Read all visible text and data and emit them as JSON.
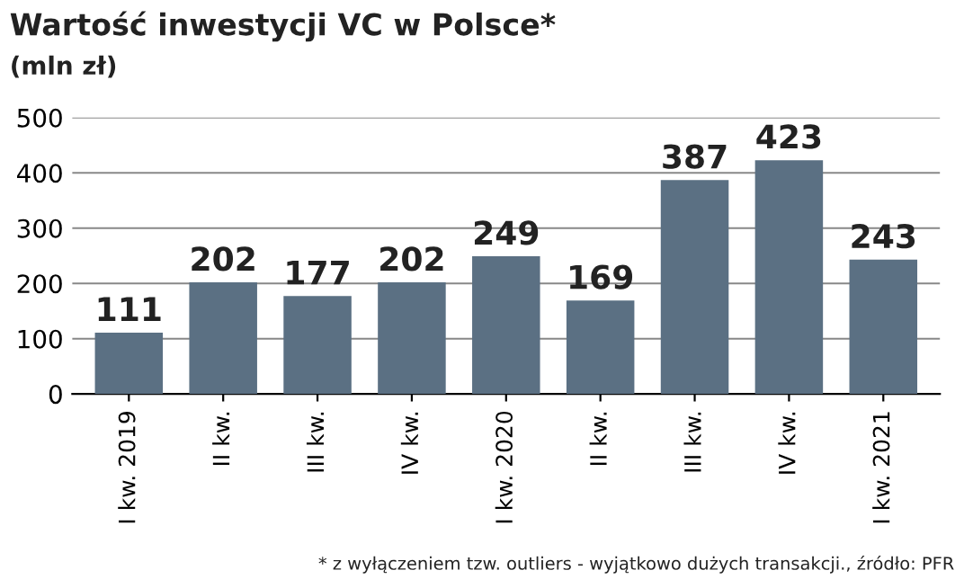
{
  "chart_data": {
    "type": "bar",
    "title": "Wartość inwestycji VC w Polsce*",
    "subtitle": "(mln zł)",
    "categories": [
      "I kw. 2019",
      "II kw.",
      "III kw.",
      "IV kw.",
      "I kw. 2020",
      "II kw.",
      "III kw.",
      "IV kw.",
      "I kw. 2021"
    ],
    "values": [
      111,
      202,
      177,
      202,
      249,
      169,
      387,
      423,
      243
    ],
    "color": "#5b7083",
    "ylim": [
      0,
      500
    ],
    "yticks": [
      0,
      100,
      200,
      300,
      400,
      500
    ],
    "grid": "y",
    "data_labels": true,
    "annotations": [
      "* z wyłączeniem tzw. outliers - wyjątkowo dużych transakcji., źródło: PFR"
    ]
  }
}
